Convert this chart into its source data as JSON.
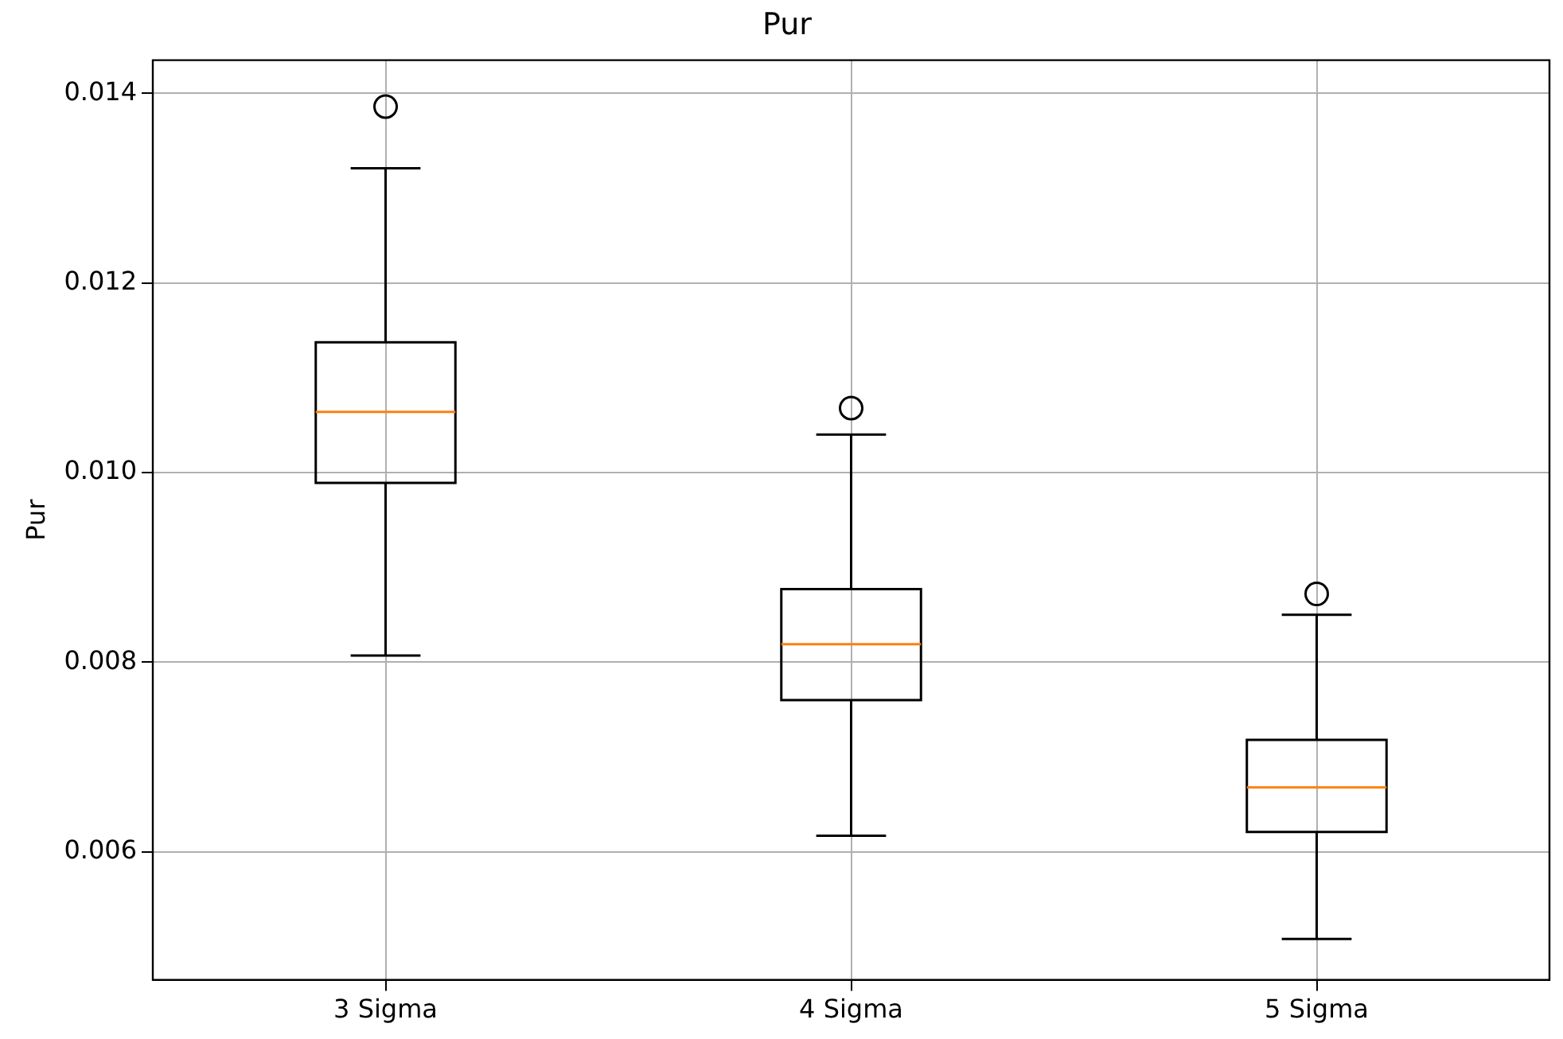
{
  "chart_data": {
    "type": "box",
    "title": "Pur",
    "ylabel": "Pur",
    "categories": [
      "3 Sigma",
      "4 Sigma",
      "5 Sigma"
    ],
    "boxes": [
      {
        "low": 0.00807,
        "q1": 0.00989,
        "median": 0.01064,
        "q3": 0.011375,
        "high": 0.01321,
        "outliers": [
          0.01386
        ]
      },
      {
        "low": 0.00617,
        "q1": 0.0076,
        "median": 0.00819,
        "q3": 0.00877,
        "high": 0.0104,
        "outliers": [
          0.01068
        ]
      },
      {
        "low": 0.00508,
        "q1": 0.00621,
        "median": 0.00668,
        "q3": 0.00718,
        "high": 0.0085,
        "outliers": [
          0.00872
        ]
      }
    ],
    "color": "#000000",
    "ylim": [
      0.00465,
      0.01435
    ],
    "yticks": [
      {
        "value": 0.006,
        "label": "0.006"
      },
      {
        "value": 0.008,
        "label": "0.008"
      },
      {
        "value": 0.01,
        "label": "0.010"
      },
      {
        "value": 0.012,
        "label": "0.012"
      },
      {
        "value": 0.014,
        "label": "0.014"
      }
    ],
    "grid": true,
    "marker": "circle"
  }
}
